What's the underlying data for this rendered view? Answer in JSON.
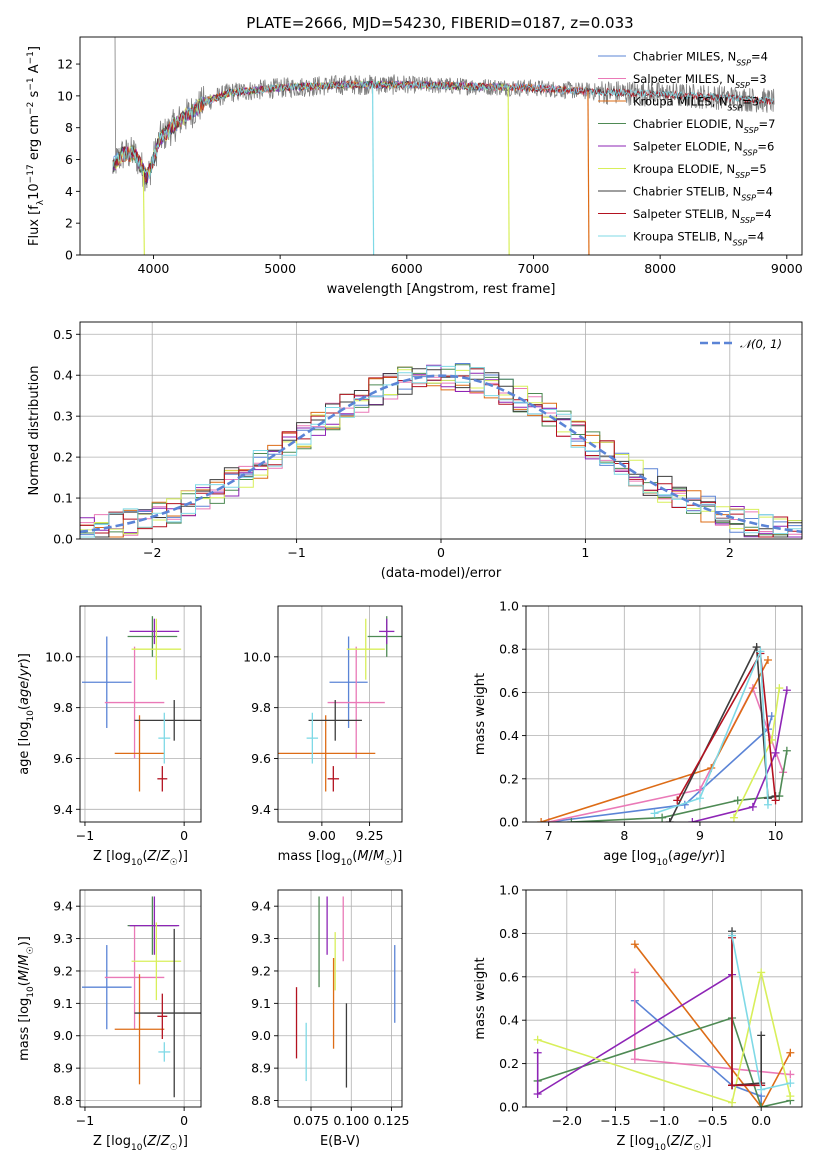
{
  "colors": {
    "Chabrier MILES": "#5b84d6",
    "Salpeter MILES": "#ea79b7",
    "Kroupa MILES": "#dd6c16",
    "Chabrier ELODIE": "#4e8a54",
    "Salpeter ELODIE": "#8e25b6",
    "Kroupa ELODIE": "#d8ef5a",
    "Chabrier STELIB": "#3d3d3d",
    "Salpeter STELIB": "#b31220",
    "Kroupa STELIB": "#7fd9e6",
    "data": "#7f7f7f",
    "normal": "#5b84d6"
  },
  "chart_data": [
    {
      "id": "spectrum",
      "type": "line",
      "title": "PLATE=2666, MJD=54230, FIBERID=0187, z=0.033",
      "xlabel": "wavelength [Angstrom, rest frame]",
      "ylabel": "Flux [fλ10⁻¹⁷ erg cm⁻² s⁻¹ A⁻¹]",
      "xlim": [
        3420,
        9120
      ],
      "ylim": [
        0,
        13.7
      ],
      "xticks": [
        4000,
        5000,
        6000,
        7000,
        8000,
        9000
      ],
      "yticks": [
        0,
        2,
        4,
        6,
        8,
        10,
        12
      ],
      "legend_position": "top-right",
      "legend": [
        {
          "name": "Chabrier MILES",
          "nssp": "4"
        },
        {
          "name": "Salpeter MILES",
          "nssp": "3"
        },
        {
          "name": "Kroupa MILES",
          "nssp": "3"
        },
        {
          "name": "Chabrier ELODIE",
          "nssp": "7"
        },
        {
          "name": "Salpeter ELODIE",
          "nssp": "6"
        },
        {
          "name": "Kroupa ELODIE",
          "nssp": "5"
        },
        {
          "name": "Chabrier STELIB",
          "nssp": "4"
        },
        {
          "name": "Salpeter STELIB",
          "nssp": "4"
        },
        {
          "name": "Kroupa STELIB",
          "nssp": "4"
        }
      ],
      "continuum": [
        [
          3680,
          5.6
        ],
        [
          3750,
          6.3
        ],
        [
          3850,
          6.4
        ],
        [
          3950,
          4.8
        ],
        [
          4050,
          7.3
        ],
        [
          4200,
          8.4
        ],
        [
          4400,
          9.6
        ],
        [
          4600,
          10.2
        ],
        [
          5000,
          10.5
        ],
        [
          5500,
          10.7
        ],
        [
          6000,
          10.7
        ],
        [
          6500,
          10.6
        ],
        [
          7000,
          10.5
        ],
        [
          7400,
          10.3
        ],
        [
          8000,
          10.1
        ],
        [
          8500,
          9.9
        ],
        [
          9000,
          9.6
        ]
      ],
      "model_ranges": {
        "Chabrier MILES": [
          3680,
          7430
        ],
        "Salpeter MILES": [
          3680,
          7430
        ],
        "Kroupa MILES": [
          3680,
          7430
        ],
        "Chabrier ELODIE": [
          3680,
          6800
        ],
        "Salpeter ELODIE": [
          3680,
          6800
        ],
        "Kroupa ELODIE": [
          3680,
          6800
        ],
        "Chabrier STELIB": [
          3680,
          8900
        ],
        "Salpeter STELIB": [
          3680,
          8900
        ],
        "Kroupa STELIB": [
          3680,
          8900
        ]
      },
      "drops_to_zero": [
        3920,
        5730,
        6800,
        7430
      ]
    },
    {
      "id": "residuals",
      "type": "bar",
      "xlabel": "(data-model)/error",
      "ylabel": "Normed distribution",
      "xlim": [
        -2.5,
        2.5
      ],
      "ylim": [
        0,
        0.53
      ],
      "xticks": [
        -2,
        -1,
        0,
        1,
        2
      ],
      "yticks": [
        0.0,
        0.1,
        0.2,
        0.3,
        0.4,
        0.5
      ],
      "legend": "𝒩(0, 1)",
      "legend_position": "top-right",
      "bin_width": 0.1
    },
    {
      "id": "age-vs-Z",
      "type": "scatter",
      "xlabel": "Z [log₁₀(Z/Z☉)]",
      "ylabel": "age  [log₁₀(age/yr)]",
      "xlim": [
        -1.05,
        0.17
      ],
      "ylim": [
        9.35,
        10.2
      ],
      "xticks": [
        -1,
        0
      ],
      "yticks": [
        9.4,
        9.6,
        9.8,
        10.0
      ],
      "points": [
        {
          "series": "Chabrier MILES",
          "x": -0.78,
          "y": 9.9,
          "xerr": 0.25,
          "yerr": 0.18
        },
        {
          "series": "Salpeter MILES",
          "x": -0.5,
          "y": 9.82,
          "xerr": 0.3,
          "yerr": 0.22
        },
        {
          "series": "Kroupa MILES",
          "x": -0.45,
          "y": 9.62,
          "xerr": 0.25,
          "yerr": 0.15
        },
        {
          "series": "Chabrier ELODIE",
          "x": -0.32,
          "y": 10.08,
          "xerr": 0.25,
          "yerr": 0.08
        },
        {
          "series": "Salpeter ELODIE",
          "x": -0.3,
          "y": 10.1,
          "xerr": 0.25,
          "yerr": 0.05
        },
        {
          "series": "Kroupa ELODIE",
          "x": -0.28,
          "y": 10.03,
          "xerr": 0.25,
          "yerr": 0.12
        },
        {
          "series": "Chabrier STELIB",
          "x": -0.1,
          "y": 9.75,
          "xerr": 0.4,
          "yerr": 0.08
        },
        {
          "series": "Salpeter STELIB",
          "x": -0.22,
          "y": 9.52,
          "xerr": 0.05,
          "yerr": 0.05
        },
        {
          "series": "Kroupa STELIB",
          "x": -0.2,
          "y": 9.68,
          "xerr": 0.06,
          "yerr": 0.1
        }
      ]
    },
    {
      "id": "age-vs-mass",
      "type": "scatter",
      "xlabel": "mass [log₁₀(M/M☉)]",
      "ylabel": "",
      "xlim": [
        8.77,
        9.42
      ],
      "ylim": [
        9.35,
        10.2
      ],
      "xticks": [
        9.0,
        9.25
      ],
      "yticks": [
        9.4,
        9.6,
        9.8,
        10.0
      ],
      "points": [
        {
          "series": "Chabrier MILES",
          "x": 9.14,
          "y": 9.9,
          "xerr": 0.1,
          "yerr": 0.18
        },
        {
          "series": "Salpeter MILES",
          "x": 9.18,
          "y": 9.82,
          "xerr": 0.15,
          "yerr": 0.22
        },
        {
          "series": "Kroupa MILES",
          "x": 9.02,
          "y": 9.62,
          "xerr": 0.26,
          "yerr": 0.15
        },
        {
          "series": "Chabrier ELODIE",
          "x": 9.34,
          "y": 10.08,
          "xerr": 0.1,
          "yerr": 0.08
        },
        {
          "series": "Salpeter ELODIE",
          "x": 9.34,
          "y": 10.1,
          "xerr": 0.04,
          "yerr": 0.05
        },
        {
          "series": "Kroupa ELODIE",
          "x": 9.23,
          "y": 10.03,
          "xerr": 0.1,
          "yerr": 0.12
        },
        {
          "series": "Chabrier STELIB",
          "x": 9.07,
          "y": 9.75,
          "xerr": 0.14,
          "yerr": 0.08
        },
        {
          "series": "Salpeter STELIB",
          "x": 9.06,
          "y": 9.52,
          "xerr": 0.03,
          "yerr": 0.05
        },
        {
          "series": "Kroupa STELIB",
          "x": 8.95,
          "y": 9.68,
          "xerr": 0.03,
          "yerr": 0.1
        }
      ]
    },
    {
      "id": "mass-weight-vs-age",
      "type": "line",
      "xlabel": "age  [log₁₀(age/yr)]",
      "ylabel": "mass weight",
      "xlim": [
        6.7,
        10.35
      ],
      "ylim": [
        0,
        1.0
      ],
      "xticks": [
        7,
        8,
        9,
        10
      ],
      "yticks": [
        0.0,
        0.2,
        0.4,
        0.6,
        0.8,
        1.0
      ],
      "series": [
        {
          "name": "Chabrier MILES",
          "x": [
            7.0,
            8.8,
            9.9,
            9.95
          ],
          "y": [
            0.0,
            0.08,
            0.43,
            0.49
          ]
        },
        {
          "name": "Salpeter MILES",
          "x": [
            7.0,
            9.0,
            9.7,
            10.1
          ],
          "y": [
            0.0,
            0.15,
            0.62,
            0.23
          ]
        },
        {
          "name": "Kroupa MILES",
          "x": [
            6.9,
            9.15,
            9.9
          ],
          "y": [
            0.0,
            0.25,
            0.75
          ]
        },
        {
          "name": "Chabrier ELODIE",
          "x": [
            7.3,
            8.5,
            9.5,
            10.05,
            10.15
          ],
          "y": [
            0.0,
            0.02,
            0.1,
            0.12,
            0.33
          ]
        },
        {
          "name": "Salpeter ELODIE",
          "x": [
            8.9,
            9.7,
            10.0,
            10.15
          ],
          "y": [
            0.0,
            0.07,
            0.32,
            0.61
          ]
        },
        {
          "name": "Kroupa ELODIE",
          "x": [
            9.45,
            9.95,
            10.05
          ],
          "y": [
            0.02,
            0.38,
            0.62
          ]
        },
        {
          "name": "Chabrier STELIB",
          "x": [
            8.6,
            9.75,
            9.9,
            10.0
          ],
          "y": [
            0.0,
            0.81,
            0.11,
            0.12
          ]
        },
        {
          "name": "Salpeter STELIB",
          "x": [
            8.7,
            9.8,
            10.0
          ],
          "y": [
            0.1,
            0.78,
            0.1
          ]
        },
        {
          "name": "Kroupa STELIB",
          "x": [
            8.4,
            9.0,
            9.8,
            9.9
          ],
          "y": [
            0.04,
            0.11,
            0.79,
            0.08
          ]
        }
      ]
    },
    {
      "id": "mass-vs-Z",
      "type": "scatter",
      "xlabel": "Z [log₁₀(Z/Z☉)]",
      "ylabel": "mass [log₁₀(M/M☉)]",
      "xlim": [
        -1.05,
        0.17
      ],
      "ylim": [
        8.78,
        9.45
      ],
      "xticks": [
        -1,
        0
      ],
      "yticks": [
        8.8,
        8.9,
        9.0,
        9.1,
        9.2,
        9.3,
        9.4
      ],
      "points": [
        {
          "series": "Chabrier MILES",
          "x": -0.78,
          "y": 9.15,
          "xerr": 0.25,
          "yerr": 0.13
        },
        {
          "series": "Salpeter MILES",
          "x": -0.5,
          "y": 9.18,
          "xerr": 0.3,
          "yerr": 0.16
        },
        {
          "series": "Kroupa MILES",
          "x": -0.45,
          "y": 9.02,
          "xerr": 0.25,
          "yerr": 0.17
        },
        {
          "series": "Chabrier ELODIE",
          "x": -0.32,
          "y": 9.34,
          "xerr": 0.25,
          "yerr": 0.09
        },
        {
          "series": "Salpeter ELODIE",
          "x": -0.3,
          "y": 9.34,
          "xerr": 0.25,
          "yerr": 0.09
        },
        {
          "series": "Kroupa ELODIE",
          "x": -0.28,
          "y": 9.23,
          "xerr": 0.25,
          "yerr": 0.12
        },
        {
          "series": "Chabrier STELIB",
          "x": -0.1,
          "y": 9.07,
          "xerr": 0.4,
          "yerr": 0.26
        },
        {
          "series": "Salpeter STELIB",
          "x": -0.22,
          "y": 9.06,
          "xerr": 0.05,
          "yerr": 0.07
        },
        {
          "series": "Kroupa STELIB",
          "x": -0.2,
          "y": 8.95,
          "xerr": 0.06,
          "yerr": 0.03
        }
      ]
    },
    {
      "id": "mass-vs-EBV",
      "type": "scatter",
      "xlabel": "E(B-V)",
      "ylabel": "",
      "xlim": [
        0.0545,
        0.1315
      ],
      "ylim": [
        8.78,
        9.45
      ],
      "xticks": [
        0.075,
        0.1,
        0.125
      ],
      "yticks": [
        8.8,
        8.9,
        9.0,
        9.1,
        9.2,
        9.3,
        9.4
      ],
      "points": [
        {
          "series": "Chabrier MILES",
          "x": 0.127,
          "y": 9.16,
          "yerr": 0.12
        },
        {
          "series": "Salpeter MILES",
          "x": 0.095,
          "y": 9.33,
          "yerr": 0.1
        },
        {
          "series": "Kroupa MILES",
          "x": 0.089,
          "y": 9.1,
          "yerr": 0.14
        },
        {
          "series": "Chabrier ELODIE",
          "x": 0.08,
          "y": 9.29,
          "yerr": 0.14
        },
        {
          "series": "Salpeter ELODIE",
          "x": 0.085,
          "y": 9.34,
          "yerr": 0.09
        },
        {
          "series": "Kroupa ELODIE",
          "x": 0.09,
          "y": 9.23,
          "yerr": 0.09
        },
        {
          "series": "Chabrier STELIB",
          "x": 0.097,
          "y": 8.97,
          "yerr": 0.13
        },
        {
          "series": "Salpeter STELIB",
          "x": 0.066,
          "y": 9.04,
          "yerr": 0.11
        },
        {
          "series": "Kroupa STELIB",
          "x": 0.072,
          "y": 8.95,
          "yerr": 0.09
        }
      ]
    },
    {
      "id": "mass-weight-vs-Z",
      "type": "line",
      "xlabel": "Z [log₁₀(Z/Z☉)]",
      "ylabel": "mass weight",
      "xlim": [
        -2.42,
        0.42
      ],
      "ylim": [
        0,
        1.0
      ],
      "xticks": [
        -2.0,
        -1.5,
        -1.0,
        -0.5,
        0.0
      ],
      "yticks": [
        0.0,
        0.2,
        0.4,
        0.6,
        0.8,
        1.0
      ],
      "series": [
        {
          "name": "Chabrier MILES",
          "x": [
            -1.3,
            -0.3,
            0.0,
            0.0
          ],
          "y": [
            0.49,
            0.1,
            0.05,
            0.0
          ]
        },
        {
          "name": "Salpeter MILES",
          "x": [
            -1.3,
            -1.3,
            0.3
          ],
          "y": [
            0.62,
            0.22,
            0.15
          ]
        },
        {
          "name": "Kroupa MILES",
          "x": [
            -1.3,
            0.0,
            0.3
          ],
          "y": [
            0.75,
            0.0,
            0.25
          ]
        },
        {
          "name": "Chabrier ELODIE",
          "x": [
            -2.3,
            -0.3,
            0.0,
            0.3
          ],
          "y": [
            0.12,
            0.41,
            0.0,
            0.03
          ]
        },
        {
          "name": "Salpeter ELODIE",
          "x": [
            -2.3,
            -2.3,
            -0.3
          ],
          "y": [
            0.25,
            0.06,
            0.61
          ]
        },
        {
          "name": "Kroupa ELODIE",
          "x": [
            -2.3,
            -0.3,
            0.0,
            0.3
          ],
          "y": [
            0.31,
            0.02,
            0.62,
            0.05
          ]
        },
        {
          "name": "Chabrier STELIB",
          "x": [
            -0.3,
            -0.3,
            0.0,
            0.0
          ],
          "y": [
            0.81,
            0.1,
            0.11,
            0.33
          ]
        },
        {
          "name": "Salpeter STELIB",
          "x": [
            -0.3,
            -0.3,
            0.0
          ],
          "y": [
            0.78,
            0.1,
            0.1
          ]
        },
        {
          "name": "Kroupa STELIB",
          "x": [
            -0.3,
            0.0,
            0.3
          ],
          "y": [
            0.79,
            0.08,
            0.11
          ]
        }
      ]
    }
  ]
}
